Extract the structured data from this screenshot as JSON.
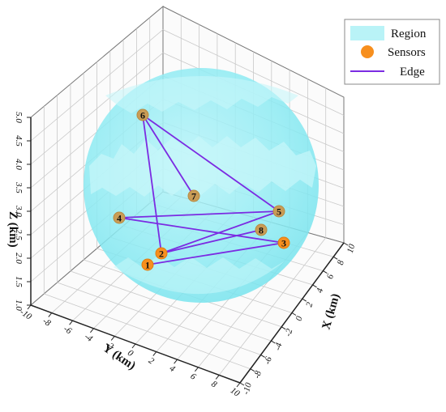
{
  "chart_data": {
    "type": "scatter",
    "xlabel": "X (km)",
    "ylabel": "Y (km)",
    "zlabel": "Z (km)",
    "x_ticks": [
      "10",
      "8",
      "6",
      "4",
      "2",
      "0",
      "-2",
      "-4",
      "-6",
      "-8",
      "-10"
    ],
    "y_ticks": [
      "-10",
      "-8",
      "-6",
      "-4",
      "-2",
      "0",
      "2",
      "4",
      "6",
      "8",
      "10"
    ],
    "z_ticks": [
      "1.0",
      "1.5",
      "2.0",
      "2.5",
      "3.0",
      "3.5",
      "4.0",
      "4.5",
      "5.0"
    ],
    "legend": {
      "position": "top-right",
      "items": [
        {
          "label": "Region",
          "kind": "patch",
          "color": "#b9f3f7"
        },
        {
          "label": "Sensors",
          "kind": "marker",
          "color": "#f78f1e"
        },
        {
          "label": "Edge",
          "kind": "line",
          "color": "#7b2be2"
        }
      ]
    },
    "region": {
      "shape": "sphere",
      "color": "#6fe3ef"
    },
    "sensor_color": "#f78f1e",
    "edge_color": "#7b2be2",
    "nodes": [
      {
        "id": "1",
        "x": -2.0,
        "y": -1.5,
        "z": 1.5
      },
      {
        "id": "2",
        "x": -1.5,
        "y": -1.5,
        "z": 1.8
      },
      {
        "id": "3",
        "x": 4.0,
        "y": 3.5,
        "z": 2.8
      },
      {
        "id": "4",
        "x": -5.0,
        "y": -5.5,
        "z": 3.0
      },
      {
        "id": "5",
        "x": 3.0,
        "y": 4.5,
        "z": 3.8
      },
      {
        "id": "6",
        "x": -1.5,
        "y": -6.0,
        "z": 4.6
      },
      {
        "id": "7",
        "x": 1.0,
        "y": 0.0,
        "z": 3.6
      },
      {
        "id": "8",
        "x": 3.0,
        "y": 3.5,
        "z": 3.0
      }
    ],
    "edges": [
      [
        "6",
        "7"
      ],
      [
        "6",
        "2"
      ],
      [
        "6",
        "5"
      ],
      [
        "4",
        "5"
      ],
      [
        "4",
        "3"
      ],
      [
        "1",
        "3"
      ],
      [
        "2",
        "5"
      ],
      [
        "2",
        "8"
      ]
    ]
  }
}
